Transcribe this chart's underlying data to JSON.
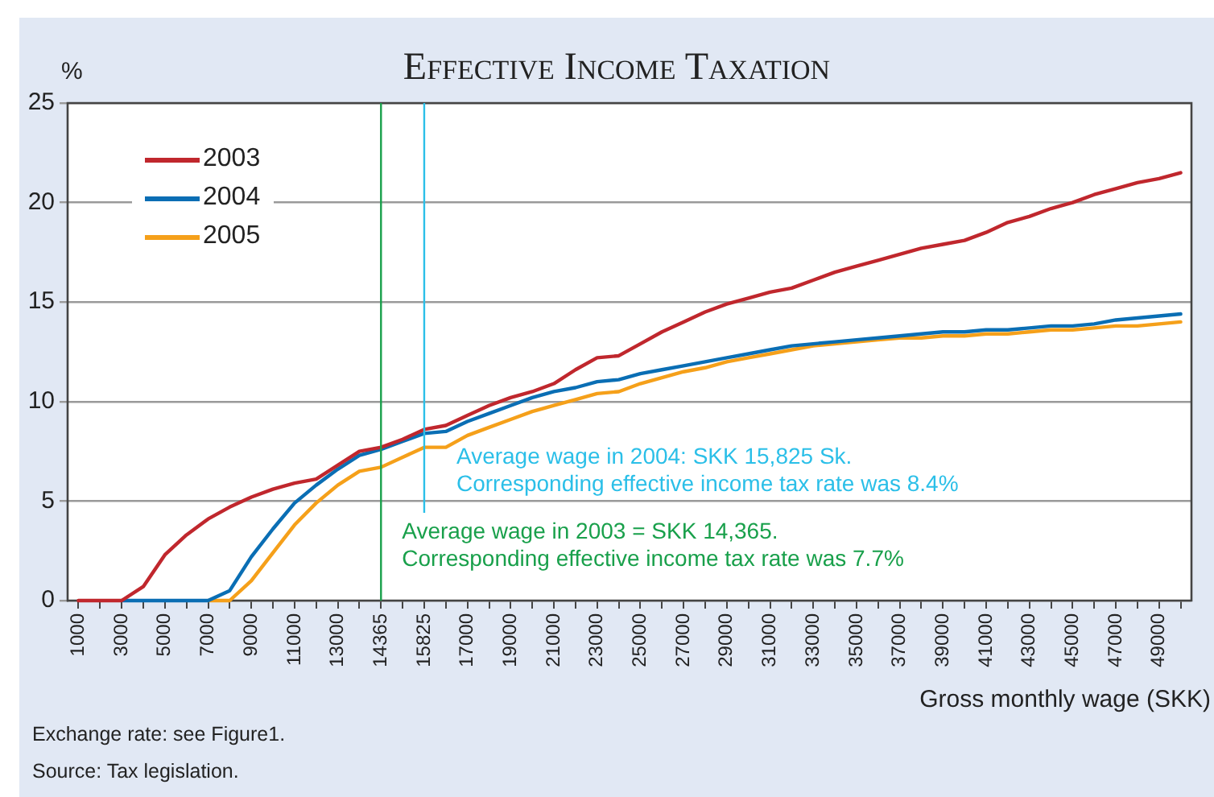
{
  "chart_data": {
    "type": "line",
    "title": "Effective Income Taxation",
    "ylabel": "%",
    "xlabel": "Gross monthly wage (SKK)",
    "categories": [
      "1000",
      null,
      "3000",
      null,
      "5000",
      null,
      "7000",
      null,
      "9000",
      null,
      "11000",
      null,
      "13000",
      null,
      "14365",
      null,
      "15825",
      null,
      "17000",
      null,
      "19000",
      null,
      "21000",
      null,
      "23000",
      null,
      "25000",
      null,
      "27000",
      null,
      "29000",
      null,
      "31000",
      null,
      "33000",
      null,
      "35000",
      null,
      "37000",
      null,
      "39000",
      null,
      "41000",
      null,
      "43000",
      null,
      "45000",
      null,
      "47000",
      null,
      "49000",
      null
    ],
    "series": [
      {
        "name": "2003",
        "color": "#c0272d",
        "values": [
          0,
          0,
          0,
          0.7,
          2.3,
          3.3,
          4.1,
          4.7,
          5.2,
          5.6,
          5.9,
          6.1,
          6.8,
          7.5,
          7.7,
          8.1,
          8.6,
          8.8,
          9.3,
          9.8,
          10.2,
          10.5,
          10.9,
          11.6,
          12.2,
          12.3,
          12.9,
          13.5,
          14.0,
          14.5,
          14.9,
          15.2,
          15.5,
          15.7,
          16.1,
          16.5,
          16.8,
          17.1,
          17.4,
          17.7,
          17.9,
          18.1,
          18.5,
          19.0,
          19.3,
          19.7,
          20.0,
          20.4,
          20.7,
          21.0,
          21.2,
          21.5
        ]
      },
      {
        "name": "2004",
        "color": "#0a6eb4",
        "values": [
          null,
          null,
          0,
          0,
          0,
          0,
          0,
          0.5,
          2.2,
          3.6,
          4.9,
          5.8,
          6.6,
          7.3,
          7.6,
          8.0,
          8.4,
          8.5,
          9.0,
          9.4,
          9.8,
          10.2,
          10.5,
          10.7,
          11.0,
          11.1,
          11.4,
          11.6,
          11.8,
          12.0,
          12.2,
          12.4,
          12.6,
          12.8,
          12.9,
          13.0,
          13.1,
          13.2,
          13.3,
          13.4,
          13.5,
          13.5,
          13.6,
          13.6,
          13.7,
          13.8,
          13.8,
          13.9,
          14.1,
          14.2,
          14.3,
          14.4
        ]
      },
      {
        "name": "2005",
        "color": "#f5a01a",
        "values": [
          null,
          null,
          null,
          null,
          null,
          null,
          0,
          0,
          1.0,
          2.4,
          3.8,
          4.9,
          5.8,
          6.5,
          6.7,
          7.2,
          7.7,
          7.7,
          8.3,
          8.7,
          9.1,
          9.5,
          9.8,
          10.1,
          10.4,
          10.5,
          10.9,
          11.2,
          11.5,
          11.7,
          12.0,
          12.2,
          12.4,
          12.6,
          12.8,
          12.9,
          13.0,
          13.1,
          13.2,
          13.2,
          13.3,
          13.3,
          13.4,
          13.4,
          13.5,
          13.6,
          13.6,
          13.7,
          13.8,
          13.8,
          13.9,
          14.0
        ]
      }
    ],
    "ylim": [
      0,
      25
    ],
    "yticks": [
      0,
      5,
      10,
      15,
      20,
      25
    ],
    "grid": "y",
    "legend": "top left",
    "marker": "none",
    "line_style": "solid",
    "ref_lines": [
      {
        "axis": "x",
        "value": "14365",
        "color": "#19a04b",
        "label": "Average wage in 2003 = SKK 14,365.\nCorresponding effective income tax rate was 7.7%"
      },
      {
        "axis": "x",
        "value": "15825",
        "color": "#2bbfe8",
        "label": "Average wage in 2004: SKK 15,825 Sk.\nCorresponding effective income tax rate was 8.4%"
      }
    ],
    "annotations": [
      "Exchange rate: see Figure1.",
      "Source: Tax legislation."
    ]
  }
}
